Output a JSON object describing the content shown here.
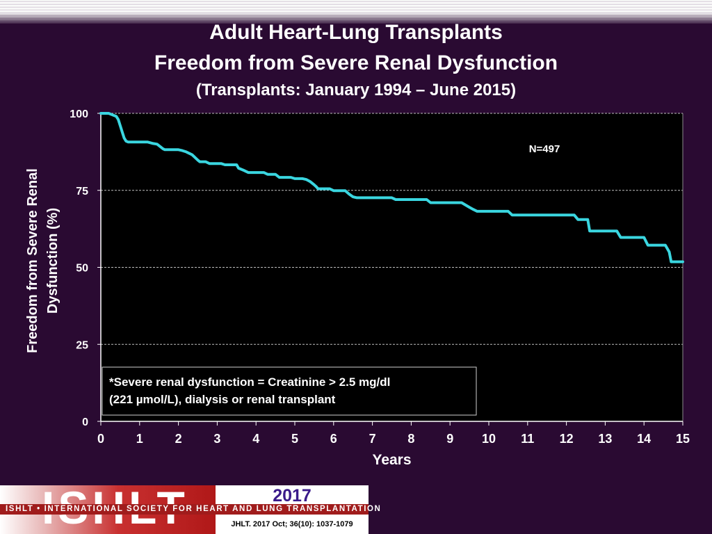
{
  "slide": {
    "title": "Adult Heart-Lung Transplants",
    "subtitle": "Freedom from Severe Renal Dysfunction",
    "subtitle2": "(Transplants: January 1994 – June 2015)"
  },
  "footer": {
    "logo": "ISHLT",
    "org": "ISHLT • INTERNATIONAL SOCIETY FOR HEART AND LUNG TRANSPLANTATION",
    "year": "2017",
    "citation": "JHLT. 2017 Oct; 36(10): 1037-1079"
  },
  "colors": {
    "background": "#2a0a32",
    "plot_background": "#000000",
    "series": "#3ad6e0"
  },
  "chart_data": {
    "type": "line",
    "ylabel_line1": "Freedom from Severe Renal",
    "ylabel_line2": "Dysfunction (%)",
    "xlabel": "Years",
    "xlim": [
      0,
      15
    ],
    "ylim": [
      0,
      100
    ],
    "xticks": [
      "0",
      "1",
      "2",
      "3",
      "4",
      "5",
      "6",
      "7",
      "8",
      "9",
      "10",
      "11",
      "12",
      "13",
      "14",
      "15"
    ],
    "yticks": [
      "0",
      "25",
      "50",
      "75",
      "100"
    ],
    "grid": "horizontal dashed",
    "annotation": "N=497",
    "footnote_line1": "*Severe renal dysfunction = Creatinine > 2.5 mg/dl",
    "footnote_line2": "(221 µmol/L), dialysis or renal transplant",
    "series": [
      {
        "x": [
          0,
          0.2,
          0.3,
          0.4,
          0.45,
          0.5,
          0.55,
          0.6,
          0.65,
          0.7,
          1.2,
          1.35,
          1.45,
          1.55,
          1.6,
          1.65,
          2.0,
          2.1,
          2.2,
          2.35,
          2.4,
          2.5,
          2.55,
          2.7,
          2.8,
          3.1,
          3.2,
          3.5,
          3.55,
          3.7,
          3.8,
          4.2,
          4.3,
          4.5,
          4.6,
          4.9,
          5.0,
          5.2,
          5.3,
          5.4,
          5.5,
          5.55,
          5.6,
          5.9,
          6.0,
          6.3,
          6.4,
          6.5,
          6.6,
          7.5,
          7.6,
          8.4,
          8.5,
          9.3,
          9.5,
          9.6,
          9.7,
          10.5,
          10.6,
          12.2,
          12.3,
          12.55,
          12.6,
          13.3,
          13.4,
          14.0,
          14.1,
          14.55,
          14.65,
          14.7,
          15.0
        ],
        "y": [
          100,
          100,
          99.5,
          99,
          98,
          96,
          94,
          92,
          91,
          90.7,
          90.7,
          90.2,
          90,
          89,
          88.5,
          88.2,
          88.2,
          87.9,
          87.5,
          86.6,
          86,
          84.8,
          84.3,
          84.3,
          83.7,
          83.7,
          83.3,
          83.3,
          82.2,
          81.4,
          80.8,
          80.8,
          80.2,
          80.2,
          79.2,
          79.2,
          78.8,
          78.8,
          78.5,
          77.8,
          76.8,
          76.2,
          75.5,
          75.5,
          74.9,
          74.9,
          73.8,
          72.9,
          72.6,
          72.6,
          72,
          72,
          71,
          71,
          69.5,
          68.8,
          68.2,
          68.2,
          67,
          67,
          65.5,
          65.5,
          61.8,
          61.8,
          59.7,
          59.7,
          57.2,
          57.2,
          55,
          51.8,
          51.8
        ]
      }
    ]
  }
}
